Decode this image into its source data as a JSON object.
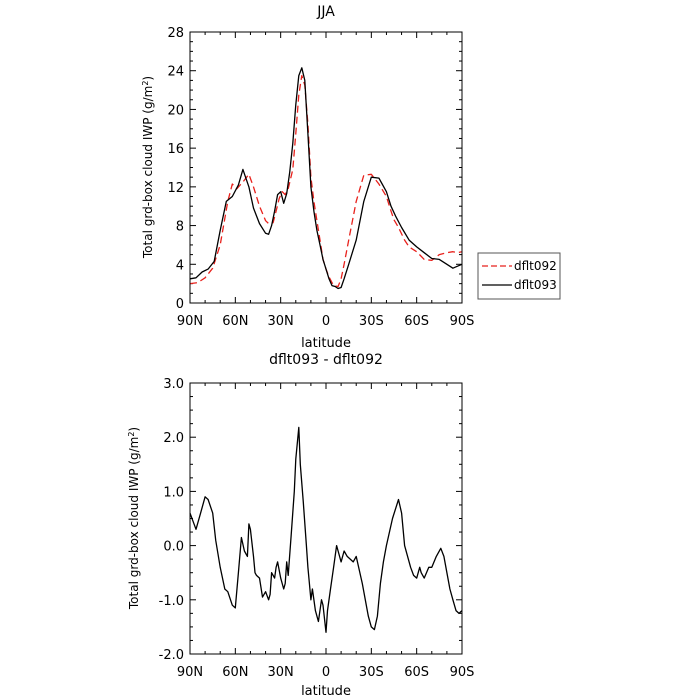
{
  "chart_data": [
    {
      "type": "line",
      "title": "JJA",
      "xlabel": "latitude",
      "ylabel_main": "Total grd-box cloud IWP (g/m",
      "ylabel_sup": "2",
      "ylabel_end": ")",
      "xlim": [
        90,
        -90
      ],
      "ylim": [
        0,
        28
      ],
      "x_tick_values": [
        90,
        60,
        30,
        0,
        -30,
        -60,
        -90
      ],
      "x_tick_labels": [
        "90N",
        "60N",
        "30N",
        "0",
        "30S",
        "60S",
        "90S"
      ],
      "y_tick_values": [
        0,
        4,
        8,
        12,
        16,
        20,
        24,
        28
      ],
      "y_tick_labels": [
        "0",
        "4",
        "8",
        "12",
        "16",
        "20",
        "24",
        "28"
      ],
      "legend": {
        "placement": "right"
      },
      "series": [
        {
          "name": "dflt092",
          "color": "#e8211c",
          "dash": "dashed",
          "x": [
            90,
            85,
            80,
            75,
            70,
            65,
            62,
            59,
            55,
            51,
            48,
            44,
            40,
            38,
            35,
            33,
            31,
            29,
            27,
            25,
            22,
            20,
            18,
            16,
            14,
            12,
            10,
            8,
            6,
            4,
            2,
            0,
            -2,
            -5,
            -8,
            -10,
            -12,
            -15,
            -20,
            -25,
            -30,
            -35,
            -40,
            -43,
            -45,
            -48,
            -52,
            -55,
            -60,
            -65,
            -70,
            -75,
            -80,
            -84,
            -87,
            -90
          ],
          "y": [
            2.0,
            2.1,
            2.6,
            3.6,
            6.0,
            10.5,
            12.3,
            11.8,
            12.5,
            13.3,
            12.0,
            10.0,
            8.5,
            8.2,
            8.3,
            9.5,
            10.8,
            11.5,
            11.2,
            11.8,
            13.8,
            17.5,
            21.5,
            23.5,
            22.5,
            18.5,
            13.0,
            10.5,
            8.5,
            6.5,
            4.5,
            3.5,
            2.7,
            1.8,
            1.7,
            2.5,
            4.0,
            6.5,
            10.5,
            13.2,
            13.3,
            12.3,
            11.0,
            9.5,
            8.6,
            7.8,
            6.5,
            5.8,
            5.3,
            4.5,
            4.4,
            5.0,
            5.2,
            5.3,
            5.2,
            5.3
          ]
        },
        {
          "name": "dflt093",
          "color": "#000000",
          "dash": "solid",
          "x": [
            90,
            86,
            82,
            78,
            74,
            70,
            66,
            62,
            58,
            55,
            51,
            48,
            44,
            40,
            38,
            36,
            34,
            32,
            30,
            28,
            26,
            24,
            22,
            20,
            18,
            16,
            14,
            12,
            10,
            8,
            6,
            4,
            2,
            0,
            -2,
            -4,
            -6,
            -8,
            -10,
            -12,
            -15,
            -20,
            -25,
            -30,
            -35,
            -40,
            -43,
            -46,
            -50,
            -55,
            -60,
            -65,
            -70,
            -75,
            -80,
            -84,
            -87,
            -90
          ],
          "y": [
            2.5,
            2.6,
            3.2,
            3.5,
            4.3,
            7.5,
            10.5,
            11.0,
            12.2,
            13.8,
            12.0,
            9.8,
            8.2,
            7.2,
            7.1,
            8.0,
            9.5,
            11.2,
            11.5,
            10.3,
            11.3,
            13.5,
            16.5,
            20.5,
            23.5,
            24.3,
            23.0,
            17.5,
            12.0,
            9.5,
            7.5,
            6.0,
            4.5,
            3.5,
            2.5,
            1.8,
            1.7,
            1.5,
            1.6,
            2.5,
            4.0,
            6.5,
            10.5,
            13.0,
            12.9,
            11.5,
            10.0,
            9.0,
            7.8,
            6.5,
            5.8,
            5.2,
            4.6,
            4.5,
            4.0,
            3.6,
            3.8,
            4.0
          ]
        }
      ]
    },
    {
      "type": "line",
      "title": "dflt093 - dflt092",
      "xlabel": "latitude",
      "ylabel_main": "Total grd-box cloud IWP (g/m",
      "ylabel_sup": "2",
      "ylabel_end": ")",
      "xlim": [
        90,
        -90
      ],
      "ylim": [
        -2.0,
        3.0
      ],
      "x_tick_values": [
        90,
        60,
        30,
        0,
        -30,
        -60,
        -90
      ],
      "x_tick_labels": [
        "90N",
        "60N",
        "30N",
        "0",
        "30S",
        "60S",
        "90S"
      ],
      "y_tick_values": [
        -2,
        -1,
        0,
        1,
        2,
        3
      ],
      "y_tick_labels": [
        "-2.0",
        "-1.0",
        "0.0",
        "1.0",
        "2.0",
        "3.0"
      ],
      "series": [
        {
          "color": "#000000",
          "dash": "solid",
          "x": [
            90,
            88,
            86,
            83,
            80,
            78,
            75,
            73,
            70,
            67,
            65,
            62,
            60,
            58,
            56,
            54,
            52,
            51,
            50,
            48,
            47,
            46,
            44,
            42,
            40,
            38,
            37,
            36,
            34,
            33,
            32,
            30,
            28,
            27,
            26,
            25,
            23,
            21,
            20,
            18,
            17,
            15,
            13,
            12,
            11,
            10,
            9,
            7,
            5,
            3,
            2,
            0,
            -1,
            -3,
            -5,
            -7,
            -8,
            -10,
            -12,
            -14,
            -16,
            -18,
            -20,
            -24,
            -28,
            -30,
            -32,
            -34,
            -36,
            -38,
            -40,
            -44,
            -48,
            -50,
            -52,
            -54,
            -56,
            -58,
            -60,
            -62,
            -63,
            -65,
            -68,
            -70,
            -73,
            -76,
            -78,
            -80,
            -82,
            -84,
            -86,
            -88,
            -90
          ],
          "y": [
            0.6,
            0.45,
            0.3,
            0.6,
            0.9,
            0.85,
            0.6,
            0.1,
            -0.4,
            -0.8,
            -0.85,
            -1.1,
            -1.15,
            -0.5,
            0.15,
            -0.1,
            -0.2,
            0.4,
            0.3,
            -0.2,
            -0.5,
            -0.55,
            -0.6,
            -0.95,
            -0.85,
            -1.0,
            -0.9,
            -0.5,
            -0.6,
            -0.4,
            -0.3,
            -0.6,
            -0.8,
            -0.7,
            -0.3,
            -0.55,
            0.2,
            1.0,
            1.6,
            2.18,
            1.5,
            0.8,
            0.0,
            -0.4,
            -0.7,
            -1.0,
            -0.8,
            -1.2,
            -1.4,
            -1.0,
            -1.1,
            -1.6,
            -1.2,
            -0.8,
            -0.4,
            0.0,
            -0.1,
            -0.3,
            -0.1,
            -0.2,
            -0.25,
            -0.3,
            -0.2,
            -0.7,
            -1.3,
            -1.5,
            -1.55,
            -1.3,
            -0.7,
            -0.3,
            0.0,
            0.5,
            0.85,
            0.6,
            0.0,
            -0.2,
            -0.4,
            -0.55,
            -0.6,
            -0.4,
            -0.5,
            -0.6,
            -0.4,
            -0.4,
            -0.2,
            -0.05,
            -0.2,
            -0.5,
            -0.8,
            -1.0,
            -1.2,
            -1.25,
            -1.2
          ]
        }
      ]
    }
  ]
}
